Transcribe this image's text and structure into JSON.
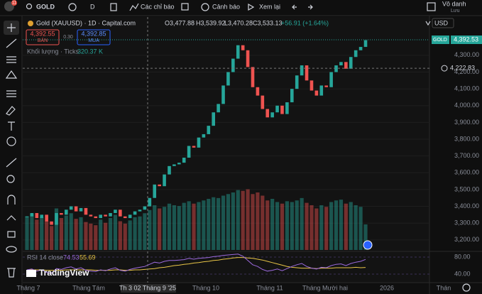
{
  "header": {
    "badge": "11",
    "symbol": "GOLD",
    "interval": "D",
    "indicators": "Các chỉ báo",
    "alerts": "Cảnh báo",
    "replay": "Xem lại",
    "user": "Vô danh",
    "save": "Lưu"
  },
  "legend": {
    "title": "Gold (XAUUSD) · 1D · Capital.com",
    "open": "O3,477.88",
    "high": "H3,539.92",
    "low": "L3,470.28",
    "close": "C3,533.13",
    "change": "+56.91 (+1.64%)",
    "sell_price": "4,392.55",
    "sell": "BÁN",
    "spread": "0.30",
    "buy_price": "4,392.85",
    "buy": "MUA",
    "volume_title": "Khối lượng · Ticks",
    "volume_value": "320.37 K",
    "rsi_title": "RSI 14 close"
  },
  "chart": {
    "type": "candlestick",
    "currency": "USD",
    "symbol_tag": "GOLD",
    "up_color": "#26a69a",
    "down_color": "#ef5350",
    "ylim": [
      3140,
      4511
    ],
    "yticks": [
      {
        "value": 3200,
        "label": "3,200.00"
      },
      {
        "value": 3300,
        "label": "3,300.00"
      },
      {
        "value": 3400,
        "label": "3,400.00"
      },
      {
        "value": 3500,
        "label": "3,500.00"
      },
      {
        "value": 3600,
        "label": "3,600.00"
      },
      {
        "value": 3700,
        "label": "3,700.00"
      },
      {
        "value": 3800,
        "label": "3,800.00"
      },
      {
        "value": 3900,
        "label": "3,900.00"
      },
      {
        "value": 4000,
        "label": "4,000.00"
      },
      {
        "value": 4100,
        "label": "4,100.00"
      },
      {
        "value": 4200,
        "label": "4,200.00"
      },
      {
        "value": 4300,
        "label": "4,300.00"
      }
    ],
    "closes": [
      3340,
      3360,
      3330,
      3350,
      3310,
      3290,
      3360,
      3350,
      3380,
      3400,
      3370,
      3390,
      3350,
      3340,
      3330,
      3350,
      3340,
      3360,
      3380,
      3340,
      3330,
      3350,
      3370,
      3380,
      3400,
      3450,
      3530,
      3520,
      3590,
      3640,
      3650,
      3660,
      3690,
      3760,
      3750,
      3810,
      3830,
      3880,
      3960,
      4010,
      4120,
      4200,
      4280,
      4360,
      4330,
      4230,
      4110,
      4060,
      3980,
      3930,
      3960,
      4000,
      3950,
      4020,
      4100,
      4180,
      4240,
      4150,
      4090,
      4060,
      4120,
      4110,
      4200,
      4240,
      4260,
      4220,
      4290,
      4330,
      4350,
      4390
    ],
    "last_price": {
      "value": 4392.53,
      "label": "4,392.53"
    },
    "crosshair_price": {
      "value": 4222.83,
      "label": "4,222.83"
    },
    "volume": {
      "ylim": [
        0,
        800
      ],
      "values": [
        420,
        450,
        380,
        410,
        360,
        300,
        520,
        400,
        430,
        460,
        390,
        410,
        350,
        330,
        310,
        380,
        340,
        400,
        440,
        360,
        330,
        370,
        410,
        420,
        460,
        500,
        560,
        520,
        540,
        580,
        560,
        550,
        590,
        610,
        580,
        600,
        620,
        640,
        660,
        650,
        680,
        700,
        720,
        750,
        740,
        760,
        700,
        720,
        680,
        620,
        640,
        600,
        580,
        610,
        600,
        620,
        650,
        590,
        560,
        520,
        560,
        540,
        600,
        620,
        630,
        580,
        600,
        560,
        540,
        320.37
      ]
    },
    "rsi": {
      "ylim": [
        21.7,
        91.7
      ],
      "yticks": [
        {
          "value": 80,
          "label": "80.00"
        },
        {
          "value": 40,
          "label": "40.00"
        }
      ],
      "color": "#9c6ade",
      "ma_color": "#e8c547",
      "values": [
        50,
        52,
        47,
        50,
        44,
        42,
        53,
        51,
        55,
        57,
        52,
        55,
        49,
        47,
        46,
        50,
        48,
        52,
        55,
        49,
        47,
        51,
        54,
        56,
        58,
        63,
        68,
        66,
        70,
        72,
        72,
        73,
        74,
        77,
        75,
        77,
        78,
        79,
        81,
        82,
        84,
        85,
        86,
        87,
        82,
        72,
        62,
        58,
        51,
        47,
        49,
        52,
        48,
        53,
        58,
        62,
        65,
        58,
        54,
        52,
        56,
        55,
        60,
        63,
        64,
        60,
        65,
        68,
        70,
        74.53
      ],
      "ma": [
        50,
        50,
        50,
        50,
        49,
        49,
        49,
        49,
        50,
        50,
        50,
        50,
        50,
        50,
        49,
        49,
        49,
        49,
        50,
        50,
        49,
        49,
        50,
        50,
        51,
        52,
        53,
        55,
        56,
        58,
        60,
        61,
        63,
        64,
        66,
        67,
        69,
        70,
        72,
        73,
        75,
        76,
        78,
        79,
        79,
        78,
        77,
        75,
        73,
        70,
        67,
        64,
        61,
        58,
        56,
        55,
        54,
        54,
        54,
        53,
        54,
        54,
        54,
        55,
        55,
        55,
        55,
        56,
        55,
        55.69
      ]
    },
    "x_labels": [
      "Tháng 7",
      "Tháng Tám",
      "Th 3 02 Tháng 9 '25",
      "Tháng 10",
      "Tháng 11",
      "Tháng Mười hai",
      "2026",
      "Thán"
    ]
  },
  "footer": {
    "brand": "TradingView"
  }
}
